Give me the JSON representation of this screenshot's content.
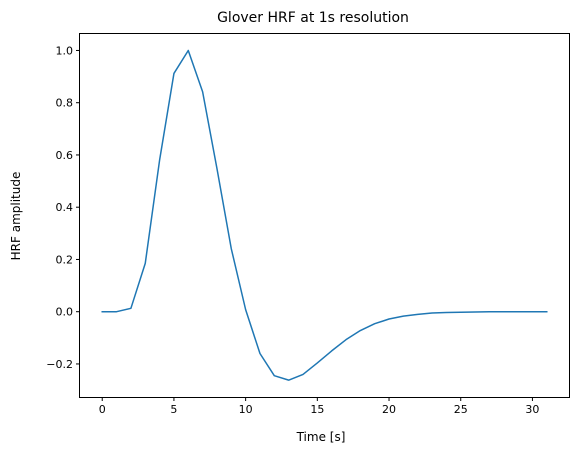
{
  "chart_data": {
    "type": "line",
    "title": "Glover HRF at 1s resolution",
    "xlabel": "Time [s]",
    "ylabel": "HRF amplitude",
    "xlim": [
      -1.55,
      32.55
    ],
    "ylim": [
      -0.3265,
      1.063
    ],
    "xticks": [
      0,
      5,
      10,
      15,
      20,
      25,
      30
    ],
    "xtick_labels": [
      "0",
      "5",
      "10",
      "15",
      "20",
      "25",
      "30"
    ],
    "yticks": [
      -0.2,
      0.0,
      0.2,
      0.4,
      0.6,
      0.8,
      1.0
    ],
    "ytick_labels": [
      "−0.2",
      "0.0",
      "0.2",
      "0.4",
      "0.6",
      "0.8",
      "1.0"
    ],
    "grid": false,
    "series": [
      {
        "name": "Glover HRF",
        "color": "#1f77b4",
        "x": [
          0,
          1,
          2,
          3,
          4,
          5,
          6,
          7,
          8,
          9,
          10,
          11,
          12,
          13,
          14,
          15,
          16,
          17,
          18,
          19,
          20,
          21,
          22,
          23,
          24,
          25,
          26,
          27,
          28,
          29,
          30,
          31
        ],
        "y": [
          0.0,
          0.0,
          0.013,
          0.185,
          0.58,
          0.912,
          1.0,
          0.842,
          0.548,
          0.241,
          0.008,
          -0.16,
          -0.245,
          -0.262,
          -0.24,
          -0.196,
          -0.15,
          -0.107,
          -0.072,
          -0.046,
          -0.028,
          -0.017,
          -0.01,
          -0.005,
          -0.003,
          -0.002,
          -0.001,
          0.0,
          0.0,
          0.0,
          0.0,
          0.0
        ]
      }
    ]
  }
}
